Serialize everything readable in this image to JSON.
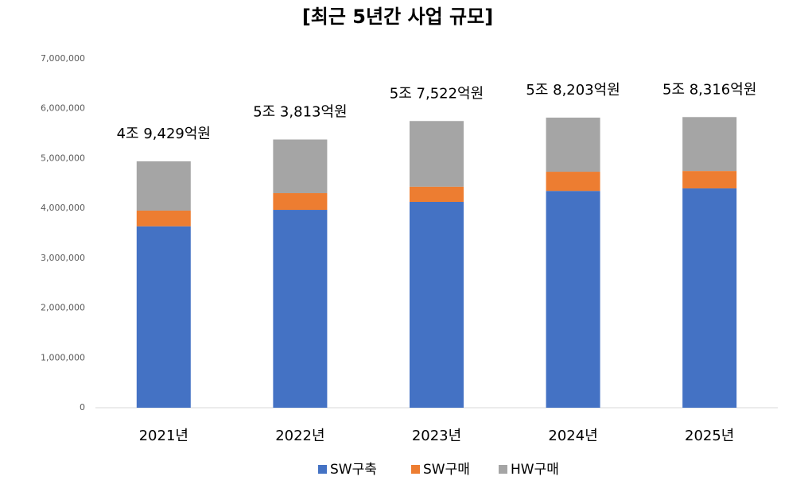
{
  "chart_data": {
    "type": "stacked_bar",
    "title": "[최근 5년간 사업 규모]",
    "categories": [
      "2021년",
      "2022년",
      "2023년",
      "2024년",
      "2025년"
    ],
    "series": [
      {
        "name": "SW구축",
        "color": "#4472c4",
        "values": [
          3640000,
          3970000,
          4130000,
          4350000,
          4400000
        ]
      },
      {
        "name": "SW구매",
        "color": "#ed7d31",
        "values": [
          315000,
          335000,
          305000,
          385000,
          350000
        ]
      },
      {
        "name": "HW구매",
        "color": "#a5a5a5",
        "values": [
          987900,
          1076300,
          1317200,
          1085300,
          1081600
        ]
      }
    ],
    "totals": [
      4942900,
      5381300,
      5752200,
      5820300,
      5831600
    ],
    "value_labels": [
      "4조 9,429억원",
      "5조 3,813억원",
      "5조 7,522억원",
      "5조 8,203억원",
      "5조 8,316억원"
    ],
    "ylim": [
      0,
      7000000
    ],
    "yticks": [
      0,
      {
        "value": 1000000,
        "label": "1,000,000"
      },
      {
        "value": 2000000,
        "label": "2,000,000"
      },
      {
        "value": 3000000,
        "label": "3,000,000"
      },
      {
        "value": 4000000,
        "label": "4,000,000"
      },
      {
        "value": 5000000,
        "label": "5,000,000"
      },
      {
        "value": 6000000,
        "label": "6,000,000"
      },
      {
        "value": 7000000,
        "label": "7,000,000"
      }
    ],
    "grid": false,
    "legend": "bottom"
  }
}
